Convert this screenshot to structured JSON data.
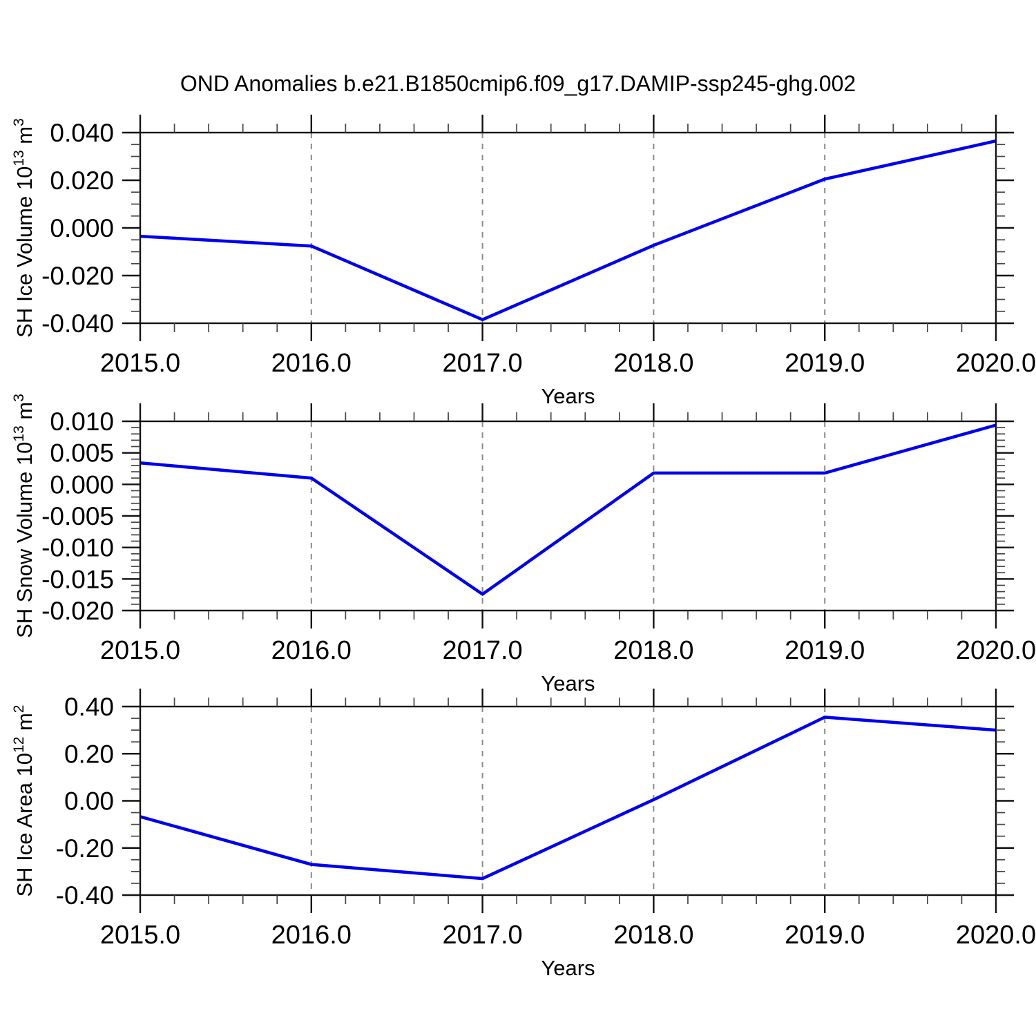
{
  "title": "OND Anomalies b.e21.B1850cmip6.f09_g17.DAMIP-ssp245-ghg.002",
  "colors": {
    "line": "#0000f0",
    "grid": "#8a8a8a",
    "axis": "#111111",
    "minor_tick": "#444444",
    "background": "#ffffff"
  },
  "chart_data": [
    {
      "type": "line",
      "id": "sh-ice-volume",
      "x": [
        2015,
        2016,
        2017,
        2018,
        2019,
        2020
      ],
      "values": [
        -0.0035,
        -0.0076,
        -0.0385,
        -0.0073,
        0.0205,
        0.0365
      ],
      "xlabel": "Years",
      "ylabel": "SH Ice Volume 10^13 m^3",
      "ylabel_rich": [
        {
          "t": "SH Ice Volume 10"
        },
        {
          "t": "13",
          "sup": true
        },
        {
          "t": " m"
        },
        {
          "t": "3",
          "sup": true
        }
      ],
      "xlim": [
        2015,
        2020
      ],
      "ylim": [
        -0.04,
        0.04
      ],
      "xtick_labels": [
        "2015.0",
        "2016.0",
        "2017.0",
        "2018.0",
        "2019.0",
        "2020.0"
      ],
      "xtick_values": [
        2015,
        2016,
        2017,
        2018,
        2019,
        2020
      ],
      "xminor_step": 0.2,
      "ytick_labels": [
        "0.040",
        "0.020",
        "0.000",
        "-0.020",
        "-0.040"
      ],
      "ytick_values": [
        0.04,
        0.02,
        0.0,
        -0.02,
        -0.04
      ],
      "yminor_step": 0.005,
      "grid_x": [
        2016,
        2017,
        2018,
        2019
      ],
      "legend": "none",
      "grid": "vertical-dashed"
    },
    {
      "type": "line",
      "id": "sh-snow-volume",
      "x": [
        2015,
        2016,
        2017,
        2018,
        2019,
        2020
      ],
      "values": [
        0.0034,
        0.001,
        -0.0174,
        0.0018,
        0.0018,
        0.0094
      ],
      "xlabel": "Years",
      "ylabel": "SH Snow Volume 10^13 m^3",
      "ylabel_rich": [
        {
          "t": "SH Snow Volume 10"
        },
        {
          "t": "13",
          "sup": true
        },
        {
          "t": " m"
        },
        {
          "t": "3",
          "sup": true
        }
      ],
      "xlim": [
        2015,
        2020
      ],
      "ylim": [
        -0.02,
        0.01
      ],
      "xtick_labels": [
        "2015.0",
        "2016.0",
        "2017.0",
        "2018.0",
        "2019.0",
        "2020.0"
      ],
      "xtick_values": [
        2015,
        2016,
        2017,
        2018,
        2019,
        2020
      ],
      "xminor_step": 0.2,
      "ytick_labels": [
        "0.010",
        "0.005",
        "0.000",
        "-0.005",
        "-0.010",
        "-0.015",
        "-0.020"
      ],
      "ytick_values": [
        0.01,
        0.005,
        0.0,
        -0.005,
        -0.01,
        -0.015,
        -0.02
      ],
      "yminor_step": 0.001,
      "grid_x": [
        2016,
        2017,
        2018,
        2019
      ],
      "legend": "none",
      "grid": "vertical-dashed"
    },
    {
      "type": "line",
      "id": "sh-ice-area",
      "x": [
        2015,
        2016,
        2017,
        2018,
        2019,
        2020
      ],
      "values": [
        -0.067,
        -0.27,
        -0.33,
        0.005,
        0.355,
        0.3
      ],
      "xlabel": "Years",
      "ylabel": "SH Ice Area 10^12 m^2",
      "ylabel_rich": [
        {
          "t": "SH Ice Area 10"
        },
        {
          "t": "12",
          "sup": true
        },
        {
          "t": " m"
        },
        {
          "t": "2",
          "sup": true
        }
      ],
      "xlim": [
        2015,
        2020
      ],
      "ylim": [
        -0.4,
        0.4
      ],
      "xtick_labels": [
        "2015.0",
        "2016.0",
        "2017.0",
        "2018.0",
        "2019.0",
        "2020.0"
      ],
      "xtick_values": [
        2015,
        2016,
        2017,
        2018,
        2019,
        2020
      ],
      "xminor_step": 0.2,
      "ytick_labels": [
        "0.40",
        "0.20",
        "0.00",
        "-0.20",
        "-0.40"
      ],
      "ytick_values": [
        0.4,
        0.2,
        0.0,
        -0.2,
        -0.4
      ],
      "yminor_step": 0.05,
      "grid_x": [
        2016,
        2017,
        2018,
        2019
      ],
      "legend": "none",
      "grid": "vertical-dashed"
    }
  ]
}
